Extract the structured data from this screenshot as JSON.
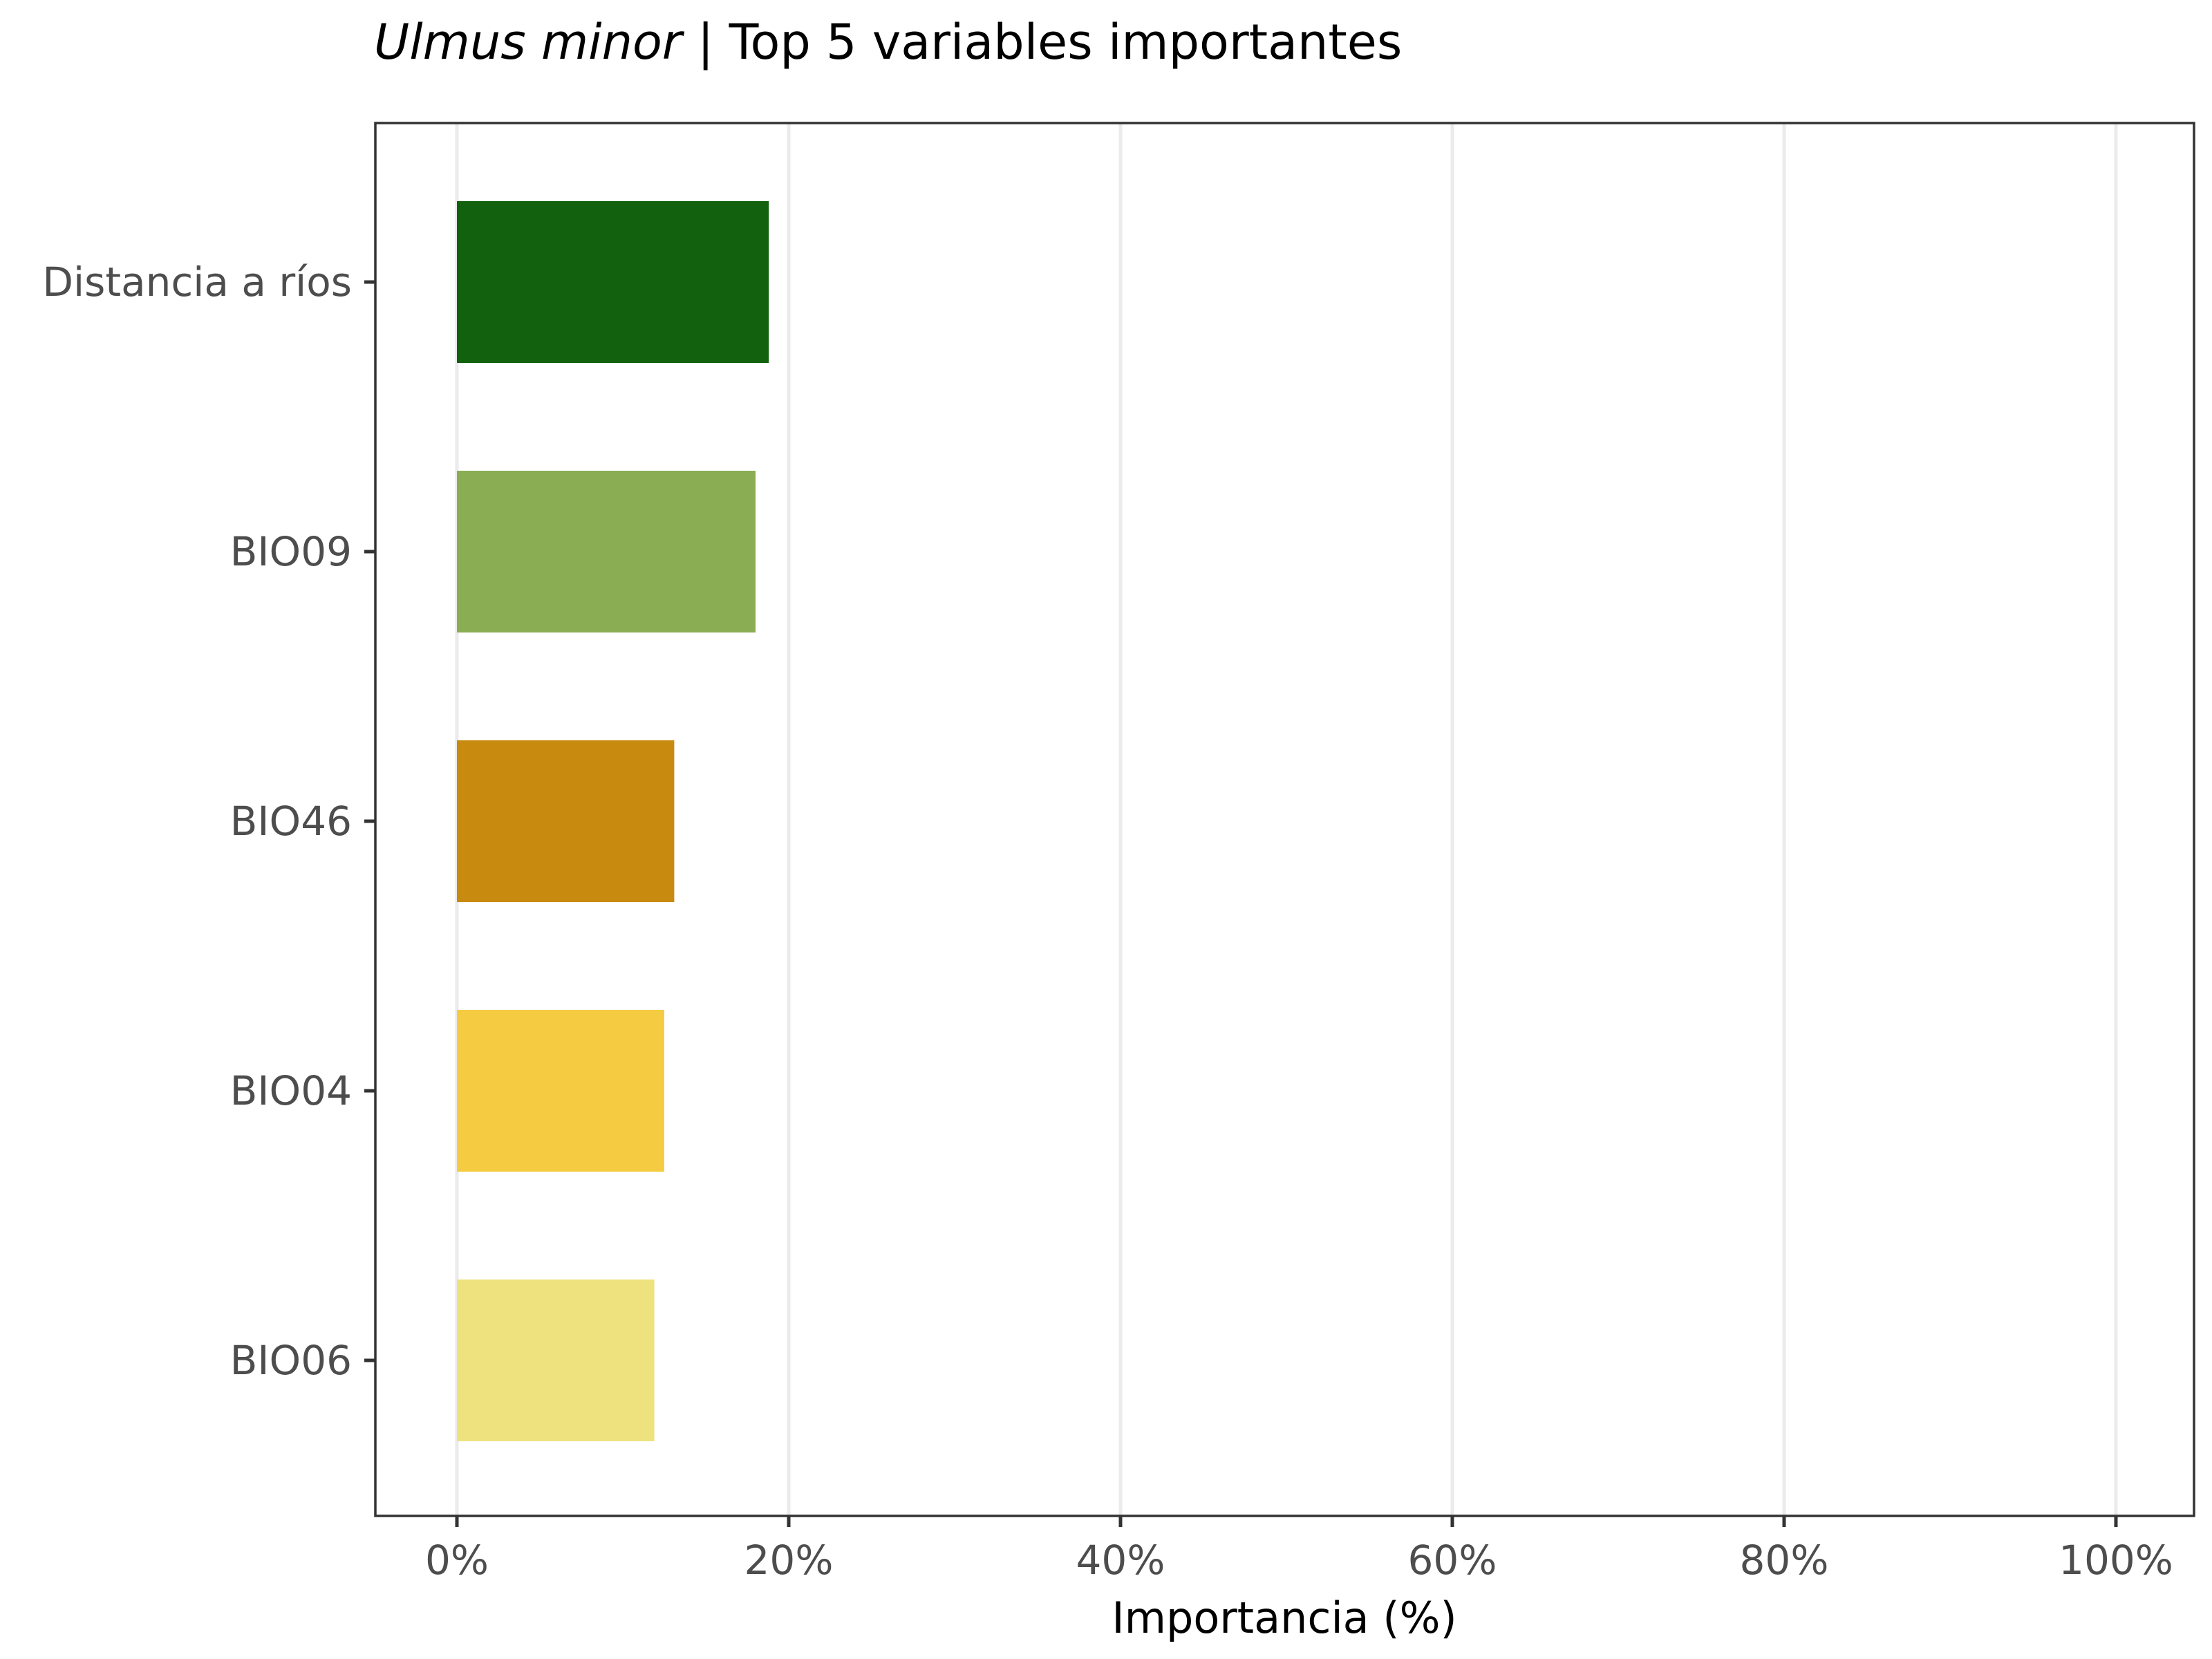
{
  "chart_data": {
    "type": "bar",
    "orientation": "horizontal",
    "title_species": "Ulmus minor",
    "title_rest": " | Top 5 variables importantes",
    "xlabel": "Importancia (%)",
    "ylabel": "",
    "xlim": [
      0,
      100
    ],
    "xticks": [
      0,
      20,
      40,
      60,
      80,
      100
    ],
    "xtick_labels": [
      "0%",
      "20%",
      "40%",
      "60%",
      "80%",
      "100%"
    ],
    "categories": [
      "Distancia a ríos",
      "BIO09",
      "BIO46",
      "BIO04",
      "BIO06"
    ],
    "values": [
      18.8,
      18.0,
      13.1,
      12.5,
      11.9
    ],
    "colors": [
      "#12610f",
      "#8aad54",
      "#c88b0f",
      "#f5cb42",
      "#eee27e"
    ],
    "grid": true,
    "legend": "none"
  }
}
